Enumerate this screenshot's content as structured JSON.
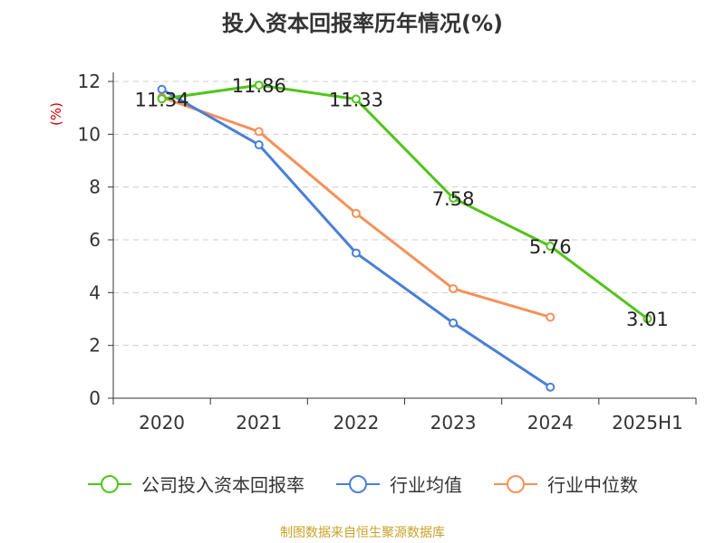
{
  "chart_data": {
    "type": "line",
    "title": "投入资本回报率历年情况(%)",
    "ylabel": "(%)",
    "xlabel": "",
    "categories": [
      "2020",
      "2021",
      "2022",
      "2023",
      "2024",
      "2025H1"
    ],
    "ylim": [
      0,
      12
    ],
    "yticks": [
      0,
      2,
      4,
      6,
      8,
      10,
      12
    ],
    "grid": true,
    "legend_position": "bottom",
    "series": [
      {
        "name": "公司投入资本回报率",
        "color": "#52c41a",
        "values": [
          11.34,
          11.86,
          11.33,
          7.58,
          5.76,
          3.01
        ],
        "labels": [
          "11.34",
          "11.86",
          "11.33",
          "7.58",
          "5.76",
          "3.01"
        ]
      },
      {
        "name": "行业均值",
        "color": "#4a7fd6",
        "values": [
          11.7,
          9.6,
          5.5,
          2.85,
          0.42,
          null
        ]
      },
      {
        "name": "行业中位数",
        "color": "#f5915a",
        "values": [
          11.4,
          10.1,
          7.0,
          4.15,
          3.07,
          null
        ]
      }
    ]
  },
  "source_note": "制图数据来自恒生聚源数据库"
}
